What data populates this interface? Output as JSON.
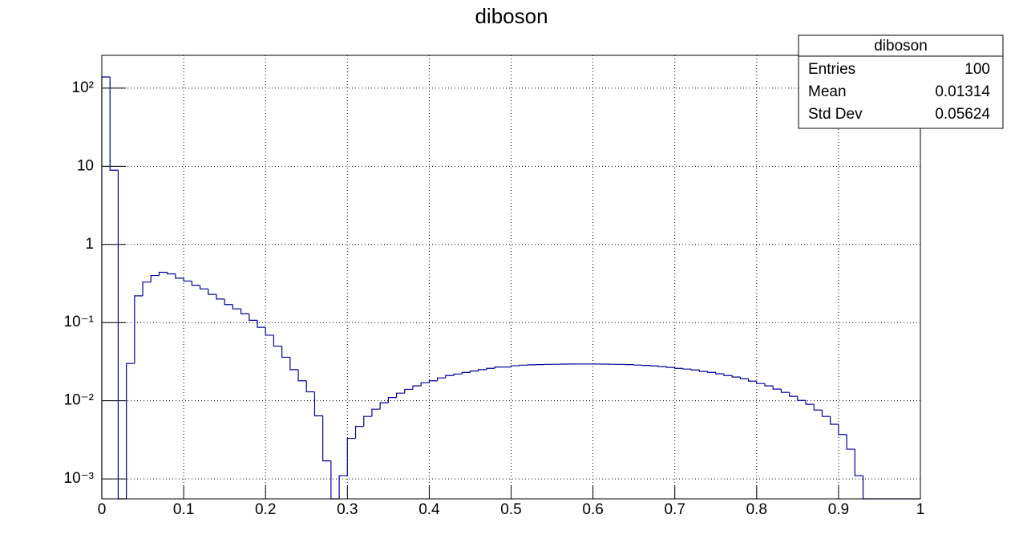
{
  "chart_data": {
    "type": "histogram",
    "title": "diboson",
    "bins": [
      0,
      0.01,
      0.02,
      0.03,
      0.04,
      0.05,
      0.06,
      0.07,
      0.08,
      0.09,
      0.1,
      0.11,
      0.12,
      0.13,
      0.14,
      0.15,
      0.16,
      0.17,
      0.18,
      0.19,
      0.2,
      0.21,
      0.22,
      0.23,
      0.24,
      0.25,
      0.26,
      0.27,
      0.28,
      0.29,
      0.3,
      0.31,
      0.32,
      0.33,
      0.34,
      0.35,
      0.36,
      0.37,
      0.38,
      0.39,
      0.4,
      0.41,
      0.42,
      0.43,
      0.44,
      0.45,
      0.46,
      0.47,
      0.48,
      0.49,
      0.5,
      0.51,
      0.52,
      0.53,
      0.54,
      0.55,
      0.56,
      0.57,
      0.58,
      0.59,
      0.6,
      0.61,
      0.62,
      0.63,
      0.64,
      0.65,
      0.66,
      0.67,
      0.68,
      0.69,
      0.7,
      0.71,
      0.72,
      0.73,
      0.74,
      0.75,
      0.76,
      0.77,
      0.78,
      0.79,
      0.8,
      0.81,
      0.82,
      0.83,
      0.84,
      0.85,
      0.86,
      0.87,
      0.88,
      0.89,
      0.9,
      0.91,
      0.92,
      0.93,
      0.94,
      0.95,
      0.96,
      0.97,
      0.98,
      0.99,
      1
    ],
    "values": [
      139,
      8.9,
      0,
      0.03,
      0.22,
      0.33,
      0.4,
      0.44,
      0.42,
      0.37,
      0.34,
      0.3,
      0.27,
      0.23,
      0.2,
      0.17,
      0.15,
      0.13,
      0.107,
      0.087,
      0.069,
      0.05,
      0.036,
      0.025,
      0.018,
      0.013,
      0.0064,
      0.0017,
      0,
      0.0011,
      0.0033,
      0.0047,
      0.0063,
      0.0078,
      0.0094,
      0.011,
      0.0125,
      0.014,
      0.0155,
      0.017,
      0.018,
      0.0196,
      0.021,
      0.022,
      0.023,
      0.024,
      0.025,
      0.026,
      0.027,
      0.027,
      0.028,
      0.0285,
      0.0288,
      0.029,
      0.0292,
      0.0293,
      0.0294,
      0.0295,
      0.0295,
      0.0295,
      0.0295,
      0.0294,
      0.0293,
      0.0292,
      0.029,
      0.0286,
      0.0283,
      0.0279,
      0.0273,
      0.0267,
      0.026,
      0.0254,
      0.0248,
      0.0237,
      0.0231,
      0.0221,
      0.021,
      0.0201,
      0.0191,
      0.0178,
      0.0166,
      0.0155,
      0.0141,
      0.0128,
      0.0114,
      0.0101,
      0.009,
      0.0076,
      0.0063,
      0.005,
      0.0037,
      0.0024,
      0.0011,
      0,
      0,
      0,
      0,
      0,
      0,
      0
    ],
    "color": "#000099",
    "xlim": [
      0,
      1
    ],
    "xticks": [
      0,
      0.1,
      0.2,
      0.3,
      0.4,
      0.5,
      0.6,
      0.7,
      0.8,
      0.9,
      1
    ],
    "ylim": [
      0.000555,
      263
    ],
    "log_y": true,
    "yticks": [
      {
        "value": 0.001,
        "label": "10⁻³"
      },
      {
        "value": 0.01,
        "label": "10⁻²"
      },
      {
        "value": 0.1,
        "label": "10⁻¹"
      },
      1,
      10,
      {
        "value": 100,
        "label": "10²"
      }
    ],
    "grid": true,
    "stats_box": {
      "title": "diboson",
      "rows": [
        [
          "Entries",
          100
        ],
        [
          "Mean",
          0.01314
        ],
        [
          "Std Dev",
          0.05624
        ]
      ]
    }
  }
}
